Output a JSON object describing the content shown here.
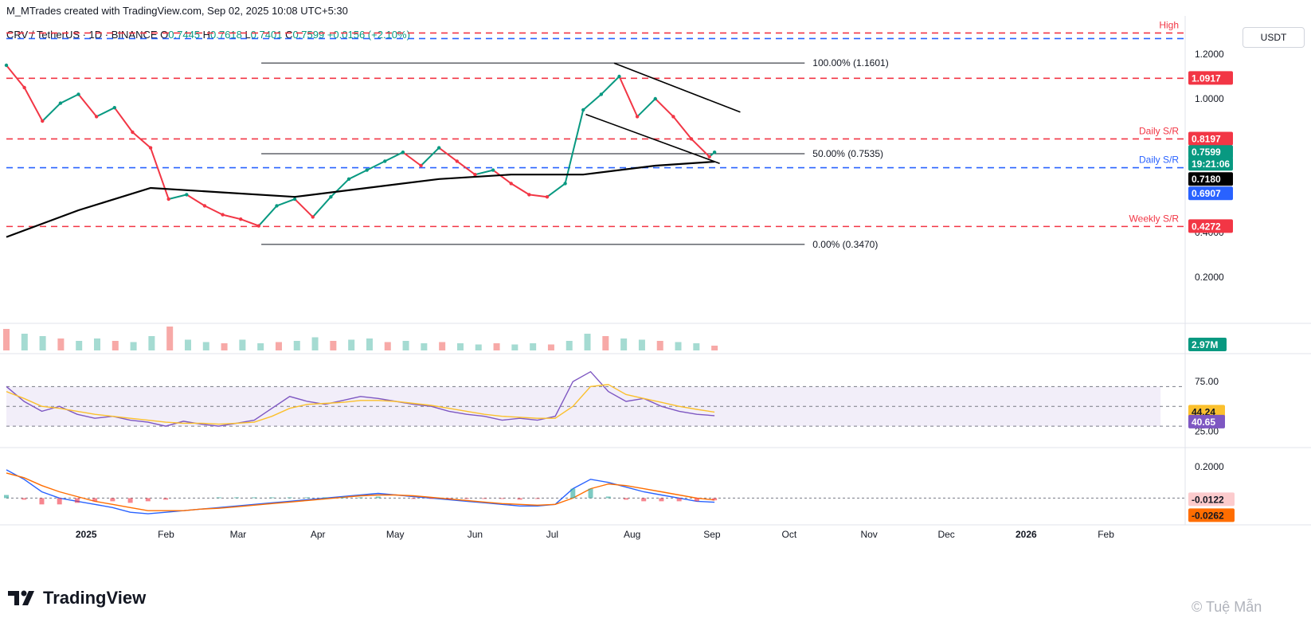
{
  "header": {
    "credit": "M_MTrades created with TradingView.com, Sep 02, 2025 10:08 UTC+5:30"
  },
  "symbol": {
    "name": "CRV / TetherUS · 1D · BINANCE",
    "o_label": "O",
    "o_value": "0.7445",
    "h_label": "H",
    "h_value": "0.7618",
    "l_label": "L",
    "l_value": "0.7401",
    "c_label": "C",
    "c_value": "0.7599",
    "change": "+0.0156 (+2.10%)"
  },
  "toolbar": {
    "currency_label": "USDT"
  },
  "footer": {
    "brand": "TradingView",
    "credit": "© Tuệ Mẫn"
  },
  "colors": {
    "up": "#089981",
    "down": "#f23645",
    "red_line": "#f23645",
    "blue_line": "#2962ff",
    "ma": "#000000",
    "rsi": "#7e57c2",
    "rsi_ma": "#fbc02d",
    "macd": "#2962ff",
    "signal": "#ff6d00"
  },
  "chart_data": [
    {
      "type": "line",
      "title": "CRV / TetherUS · 1D · BINANCE",
      "x_axis_ticks": [
        "2025",
        "Feb",
        "Mar",
        "Apr",
        "May",
        "Jun",
        "Jul",
        "Aug",
        "Sep",
        "Oct",
        "Nov",
        "Dec",
        "2026",
        "Feb"
      ],
      "y_axis_ticks": [
        "1.2000",
        "1.0000",
        "0.4000",
        "0.2000"
      ],
      "series": [
        {
          "name": "",
          "x": [
            "2024-12-01",
            "2024-12-08",
            "2024-12-15",
            "2024-12-22",
            "2024-12-29",
            "2025-01-05",
            "2025-01-12",
            "2025-01-19",
            "2025-01-26",
            "2025-02-02",
            "2025-02-09",
            "2025-02-16",
            "2025-02-23",
            "2025-03-02",
            "2025-03-09",
            "2025-03-16",
            "2025-03-23",
            "2025-03-30",
            "2025-04-06",
            "2025-04-13",
            "2025-04-20",
            "2025-04-27",
            "2025-05-04",
            "2025-05-11",
            "2025-05-18",
            "2025-05-25",
            "2025-06-01",
            "2025-06-08",
            "2025-06-15",
            "2025-06-22",
            "2025-06-29",
            "2025-07-06",
            "2025-07-13",
            "2025-07-20",
            "2025-07-27",
            "2025-08-03",
            "2025-08-10",
            "2025-08-17",
            "2025-08-24",
            "2025-08-31",
            "2025-09-02"
          ],
          "values": [
            1.15,
            1.05,
            0.9,
            0.98,
            1.02,
            0.92,
            0.96,
            0.85,
            0.78,
            0.55,
            0.57,
            0.52,
            0.48,
            0.46,
            0.43,
            0.52,
            0.55,
            0.47,
            0.56,
            0.64,
            0.68,
            0.72,
            0.76,
            0.7,
            0.78,
            0.72,
            0.66,
            0.68,
            0.62,
            0.57,
            0.56,
            0.62,
            0.95,
            1.02,
            1.1,
            0.92,
            1.0,
            0.92,
            0.82,
            0.74,
            0.7599
          ]
        },
        {
          "name": "",
          "x": [
            "2024-12-01",
            "2024-12-29",
            "2025-01-26",
            "2025-02-23",
            "2025-03-23",
            "2025-04-20",
            "2025-05-18",
            "2025-06-15",
            "2025-07-13",
            "2025-08-10",
            "2025-09-02"
          ],
          "values": [
            0.38,
            0.5,
            0.6,
            0.58,
            0.56,
            0.6,
            0.64,
            0.66,
            0.66,
            0.7,
            0.718
          ]
        }
      ],
      "horizontal_levels": [
        {
          "label": "High",
          "price": "1.2950",
          "color": "#f23645",
          "style": "dashed"
        },
        {
          "label": "",
          "price": "1.2700",
          "color": "#2962ff",
          "style": "dashed"
        },
        {
          "label": "",
          "price": "1.0917",
          "color": "#f23645",
          "style": "dashed"
        },
        {
          "label": "Daily S/R",
          "price": "0.8197",
          "color": "#f23645",
          "style": "dashed"
        },
        {
          "label": "Daily S/R",
          "price": "0.6907",
          "color": "#2962ff",
          "style": "dashed"
        },
        {
          "label": "Weekly S/R",
          "price": "0.4272",
          "color": "#f23645",
          "style": "dashed"
        }
      ],
      "fibonacci": [
        {
          "label": "100.00% (1.1601)",
          "price": 1.1601
        },
        {
          "label": "50.00% (0.7535)",
          "price": 0.7535
        },
        {
          "label": "0.00% (0.3470)",
          "price": 0.347
        }
      ],
      "price_tags": [
        {
          "text": "1.0917",
          "bg": "#f23645",
          "fg": "#ffffff"
        },
        {
          "text": "0.8197",
          "bg": "#f23645",
          "fg": "#ffffff"
        },
        {
          "text": "0.7599",
          "bg": "#089981",
          "fg": "#ffffff"
        },
        {
          "text": "19:21:06",
          "bg": "#089981",
          "fg": "#ffffff"
        },
        {
          "text": "0.7180",
          "bg": "#000000",
          "fg": "#ffffff"
        },
        {
          "text": "0.6907",
          "bg": "#2962ff",
          "fg": "#ffffff"
        },
        {
          "text": "0.4272",
          "bg": "#f23645",
          "fg": "#ffffff"
        }
      ]
    },
    {
      "type": "bar",
      "title": "",
      "last_value": "2.97M",
      "values_relative": [
        0.9,
        0.7,
        0.6,
        0.5,
        0.4,
        0.5,
        0.4,
        0.35,
        0.6,
        1.0,
        0.45,
        0.35,
        0.3,
        0.45,
        0.3,
        0.35,
        0.4,
        0.55,
        0.4,
        0.45,
        0.5,
        0.35,
        0.4,
        0.3,
        0.35,
        0.3,
        0.25,
        0.3,
        0.25,
        0.3,
        0.25,
        0.4,
        0.7,
        0.6,
        0.5,
        0.45,
        0.4,
        0.35,
        0.3,
        0.2
      ]
    },
    {
      "type": "line",
      "title": "",
      "y_axis_ticks": [
        "75.00",
        "25.00"
      ],
      "series": [
        {
          "name": "",
          "values": [
            70,
            55,
            45,
            50,
            42,
            38,
            40,
            36,
            34,
            30,
            35,
            32,
            30,
            33,
            36,
            48,
            60,
            55,
            52,
            56,
            60,
            58,
            55,
            52,
            50,
            45,
            42,
            40,
            36,
            38,
            36,
            40,
            75,
            85,
            65,
            55,
            58,
            50,
            45,
            42,
            40.65
          ]
        },
        {
          "name": "",
          "values": [
            65,
            58,
            50,
            48,
            45,
            42,
            40,
            38,
            36,
            34,
            33,
            33,
            32,
            33,
            34,
            40,
            48,
            52,
            53,
            54,
            56,
            56,
            55,
            53,
            51,
            48,
            45,
            42,
            40,
            39,
            38,
            38,
            50,
            70,
            72,
            62,
            58,
            54,
            50,
            47,
            44.24
          ]
        }
      ],
      "tags": [
        "44.24",
        "40.65"
      ]
    },
    {
      "type": "line",
      "title": "",
      "y_axis_ticks": [
        "0.2000"
      ],
      "series": [
        {
          "name": "",
          "values": [
            0.18,
            0.12,
            0.04,
            0.0,
            -0.02,
            -0.04,
            -0.06,
            -0.09,
            -0.1,
            -0.09,
            -0.08,
            -0.07,
            -0.06,
            -0.05,
            -0.04,
            -0.03,
            -0.02,
            -0.01,
            0.0,
            0.01,
            0.02,
            0.03,
            0.02,
            0.01,
            0.0,
            -0.01,
            -0.02,
            -0.03,
            -0.04,
            -0.05,
            -0.05,
            -0.04,
            0.06,
            0.12,
            0.1,
            0.07,
            0.04,
            0.02,
            0.0,
            -0.02,
            -0.0262
          ]
        },
        {
          "name": "",
          "values": [
            0.16,
            0.13,
            0.08,
            0.04,
            0.01,
            -0.02,
            -0.04,
            -0.06,
            -0.08,
            -0.08,
            -0.08,
            -0.07,
            -0.065,
            -0.055,
            -0.045,
            -0.035,
            -0.025,
            -0.015,
            -0.005,
            0.005,
            0.015,
            0.02,
            0.02,
            0.015,
            0.005,
            -0.005,
            -0.015,
            -0.025,
            -0.035,
            -0.04,
            -0.045,
            -0.04,
            0.0,
            0.06,
            0.09,
            0.08,
            0.06,
            0.04,
            0.02,
            0.0,
            -0.0122
          ]
        }
      ],
      "tags": [
        "-0.0122",
        "-0.0262"
      ]
    }
  ]
}
